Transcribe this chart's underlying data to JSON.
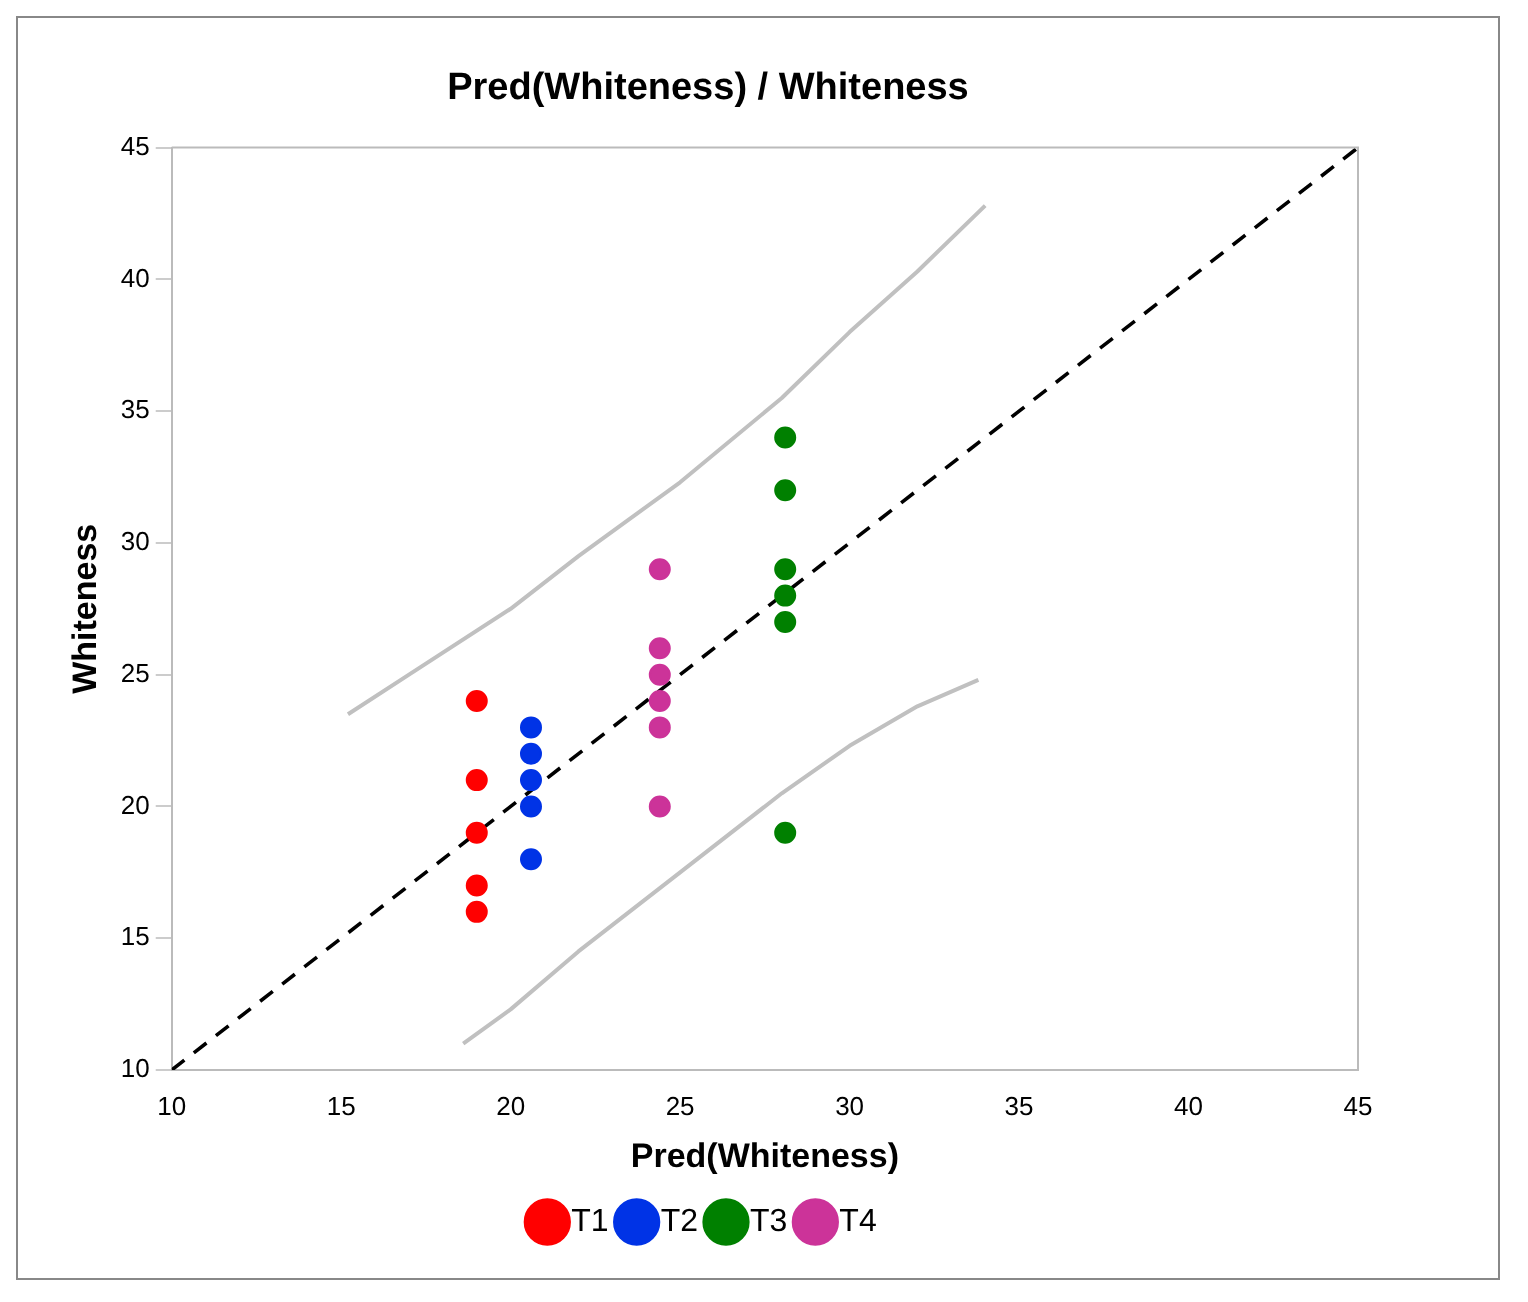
{
  "chart_data": {
    "type": "scatter",
    "title": "Pred(Whiteness) / Whiteness",
    "xlabel": "Pred(Whiteness)",
    "ylabel": "Whiteness",
    "xlim": [
      10,
      45
    ],
    "xticks": [
      10,
      15,
      20,
      25,
      30,
      35,
      40,
      45
    ],
    "ylim": [
      10,
      45
    ],
    "yticks": [
      10,
      15,
      20,
      25,
      30,
      35,
      40,
      45
    ],
    "grid": false,
    "legend": "bottom",
    "marker": "circle",
    "series": [
      {
        "name": "T1",
        "color": "#ff0000",
        "x": [
          19,
          19,
          19,
          19,
          19
        ],
        "values": [
          24,
          21,
          19,
          17,
          16
        ]
      },
      {
        "name": "T2",
        "color": "#0033e6",
        "x": [
          20.6,
          20.6,
          20.6,
          20.6,
          20.6
        ],
        "values": [
          23,
          22,
          21,
          20,
          18
        ]
      },
      {
        "name": "T3",
        "color": "#008000",
        "x": [
          28.1,
          28.1,
          28.1,
          28.1,
          28.1,
          28.1
        ],
        "values": [
          34,
          32,
          29,
          28,
          27,
          19
        ]
      },
      {
        "name": "T4",
        "color": "#cc3399",
        "x": [
          24.4,
          24.4,
          24.4,
          24.4,
          24.4,
          24.4
        ],
        "values": [
          29,
          26,
          25,
          24,
          23,
          20
        ]
      },
      {
        "type": "line",
        "color": "#000000",
        "line_style": "dashed",
        "marker": "none",
        "x": [
          10,
          45
        ],
        "values": [
          10,
          45
        ]
      },
      {
        "type": "line",
        "color": "#c0c0c0",
        "line_style": "solid",
        "marker": "none",
        "x": [
          15.2,
          17,
          20,
          22,
          25,
          28,
          30,
          32,
          34
        ],
        "values": [
          23.5,
          25,
          27.5,
          29.5,
          32.3,
          35.5,
          38,
          40.3,
          42.8
        ]
      },
      {
        "type": "line",
        "color": "#c0c0c0",
        "line_style": "solid",
        "marker": "none",
        "x": [
          18.6,
          20,
          22,
          25,
          28,
          30,
          32,
          33.8
        ],
        "values": [
          11,
          12.3,
          14.5,
          17.5,
          20.5,
          22.3,
          23.8,
          24.8
        ]
      }
    ]
  }
}
